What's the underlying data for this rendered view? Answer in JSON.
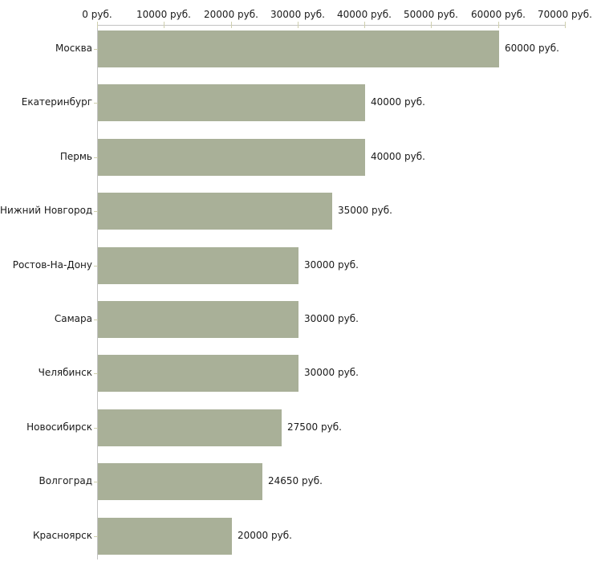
{
  "chart_data": {
    "type": "bar",
    "orientation": "horizontal",
    "title": "",
    "xlabel": "",
    "ylabel": "",
    "categories": [
      "Москва",
      "Екатеринбург",
      "Пермь",
      "Нижний Новгород",
      "Ростов-На-Дону",
      "Самара",
      "Челябинск",
      "Новосибирск",
      "Волгоград",
      "Красноярск"
    ],
    "values": [
      60000,
      40000,
      40000,
      35000,
      30000,
      30000,
      30000,
      27500,
      24650,
      20000
    ],
    "value_labels": [
      "60000 руб.",
      "40000 руб.",
      "40000 руб.",
      "35000 руб.",
      "30000 руб.",
      "30000 руб.",
      "30000 руб.",
      "27500 руб.",
      "24650 руб.",
      "20000 руб."
    ],
    "x_tick_values": [
      0,
      10000,
      20000,
      30000,
      40000,
      50000,
      60000,
      70000
    ],
    "x_tick_labels": [
      "0 руб.",
      "10000 руб.",
      "20000 руб.",
      "30000 руб.",
      "40000 руб.",
      "50000 руб.",
      "60000 руб.",
      "70000 руб."
    ],
    "xlim": [
      0,
      70000
    ],
    "grid": false,
    "legend": false,
    "colors": {
      "bar": "#a9b098",
      "axis_line": "#c2c2c2",
      "tick_mark": "#cfcfae",
      "text": "#1a1a1a",
      "background": "#ffffff"
    }
  }
}
